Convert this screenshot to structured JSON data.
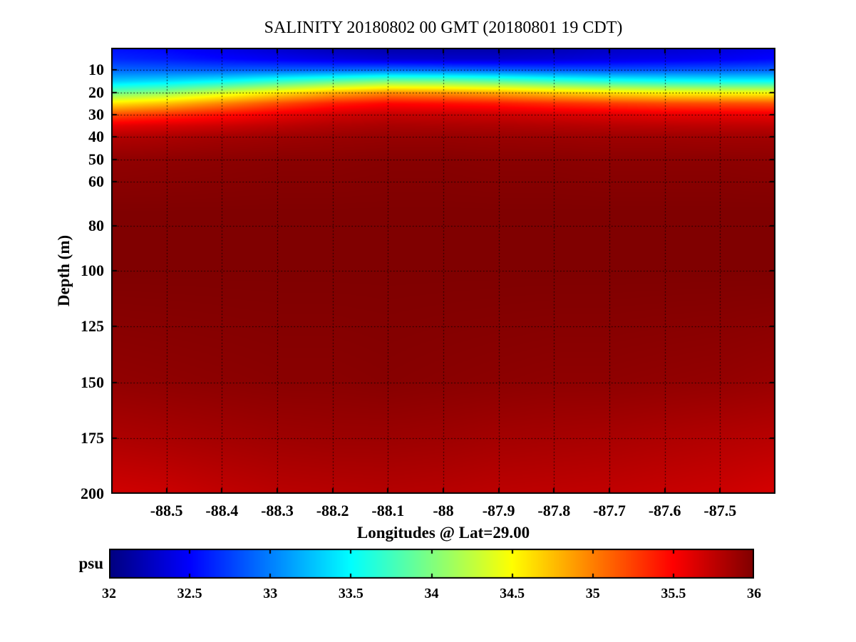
{
  "colors": {
    "background": "#ffffff",
    "text": "#000000",
    "axis": "#000000",
    "grid": "#000000"
  },
  "chart_data": {
    "type": "heatmap",
    "title": "SALINITY 20180802 00 GMT (20180801 19 CDT)",
    "xlabel": "Longitudes @ Lat=29.00",
    "ylabel": "Depth (m)",
    "colorbar_label": "psu",
    "colormap": "jet",
    "grid": true,
    "grid_style": "dotted",
    "x_range": [
      -88.6,
      -87.4
    ],
    "x_ticks": [
      -88.5,
      -88.4,
      -88.3,
      -88.2,
      -88.1,
      -88.0,
      -87.9,
      -87.8,
      -87.7,
      -87.6,
      -87.5
    ],
    "x_tick_labels": [
      "-88.5",
      "-88.4",
      "-88.3",
      "-88.2",
      "-88.1",
      "-88",
      "-87.9",
      "-87.8",
      "-87.7",
      "-87.6",
      "-87.5"
    ],
    "y_range": [
      0,
      200
    ],
    "y_ticks": [
      10,
      20,
      30,
      40,
      50,
      60,
      80,
      100,
      125,
      150,
      175,
      200
    ],
    "y_tick_labels": [
      "10",
      "20",
      "30",
      "40",
      "50",
      "60",
      "80",
      "100",
      "125",
      "150",
      "175",
      "200"
    ],
    "c_range": [
      32,
      36
    ],
    "c_ticks": [
      32,
      32.5,
      33,
      33.5,
      34,
      34.5,
      35,
      35.5,
      36
    ],
    "c_tick_labels": [
      "32",
      "32.5",
      "33",
      "33.5",
      "34",
      "34.5",
      "35",
      "35.5",
      "36"
    ],
    "depth_nodes": [
      0,
      5,
      10,
      15,
      20,
      25,
      30,
      35,
      40,
      50,
      75,
      100,
      150,
      175,
      200
    ],
    "longitudes": [
      -88.6,
      -88.5,
      -88.4,
      -88.3,
      -88.2,
      -88.1,
      -88.0,
      -87.9,
      -87.8,
      -87.7,
      -87.6,
      -87.5,
      -87.4
    ],
    "salinity_profiles": [
      [
        32.55,
        32.65,
        32.9,
        33.3,
        33.9,
        34.6,
        35.2,
        35.6,
        35.8,
        35.93,
        36.0,
        36.0,
        35.93,
        35.82,
        35.68
      ],
      [
        32.5,
        32.6,
        32.88,
        33.38,
        34.05,
        34.75,
        35.32,
        35.65,
        35.83,
        35.94,
        36.0,
        36.0,
        35.94,
        35.84,
        35.7
      ],
      [
        32.4,
        32.52,
        32.86,
        33.5,
        34.3,
        34.98,
        35.45,
        35.7,
        35.86,
        35.95,
        36.0,
        36.0,
        35.95,
        35.86,
        35.74
      ],
      [
        32.3,
        32.45,
        32.88,
        33.68,
        34.55,
        35.2,
        35.58,
        35.76,
        35.88,
        35.96,
        36.0,
        36.0,
        35.96,
        35.88,
        35.77
      ],
      [
        32.2,
        32.38,
        32.9,
        33.85,
        34.78,
        35.38,
        35.68,
        35.81,
        35.9,
        35.96,
        36.0,
        36.0,
        35.96,
        35.89,
        35.78
      ],
      [
        32.15,
        32.32,
        32.95,
        33.98,
        34.92,
        35.48,
        35.73,
        35.84,
        35.91,
        35.97,
        36.0,
        36.0,
        35.97,
        35.89,
        35.79
      ],
      [
        32.15,
        32.3,
        32.92,
        33.95,
        34.88,
        35.45,
        35.72,
        35.83,
        35.91,
        35.97,
        36.0,
        36.0,
        35.96,
        35.88,
        35.78
      ],
      [
        32.15,
        32.3,
        32.88,
        33.85,
        34.8,
        35.4,
        35.7,
        35.82,
        35.9,
        35.96,
        36.0,
        36.0,
        35.95,
        35.86,
        35.76
      ],
      [
        32.2,
        32.33,
        32.84,
        33.72,
        34.68,
        35.33,
        35.66,
        35.8,
        35.89,
        35.96,
        36.0,
        36.0,
        35.94,
        35.85,
        35.75
      ],
      [
        32.25,
        32.38,
        32.82,
        33.62,
        34.58,
        35.27,
        35.63,
        35.78,
        35.88,
        35.95,
        36.0,
        36.0,
        35.94,
        35.84,
        35.74
      ],
      [
        32.3,
        32.42,
        32.83,
        33.56,
        34.5,
        35.22,
        35.6,
        35.77,
        35.88,
        35.95,
        36.0,
        36.0,
        35.93,
        35.82,
        35.72
      ],
      [
        32.35,
        32.46,
        32.85,
        33.52,
        34.46,
        35.2,
        35.59,
        35.76,
        35.87,
        35.95,
        36.0,
        36.0,
        35.92,
        35.8,
        35.7
      ],
      [
        32.42,
        32.52,
        32.88,
        33.52,
        34.45,
        35.18,
        35.58,
        35.75,
        35.87,
        35.94,
        36.0,
        36.0,
        35.9,
        35.78,
        35.66
      ]
    ]
  }
}
